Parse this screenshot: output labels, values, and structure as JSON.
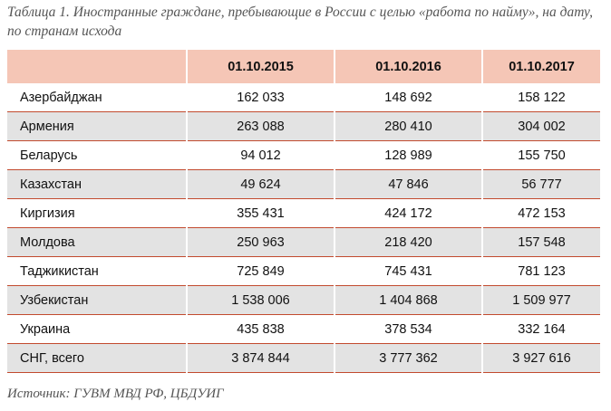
{
  "caption": "Таблица 1. Иностранные граждане, пребывающие в России с целью «работа по найму», на дату, по странам исхода",
  "table": {
    "headers": [
      "",
      "01.10.2015",
      "01.10.2016",
      "01.10.2017"
    ],
    "rows": [
      {
        "name": "Азербайджан",
        "values": [
          "162 033",
          "148 692",
          "158 122"
        ]
      },
      {
        "name": "Армения",
        "values": [
          "263 088",
          "280 410",
          "304 002"
        ]
      },
      {
        "name": "Беларусь",
        "values": [
          "94 012",
          "128 989",
          "155 750"
        ]
      },
      {
        "name": "Казахстан",
        "values": [
          "49 624",
          "47 846",
          "56 777"
        ]
      },
      {
        "name": "Киргизия",
        "values": [
          "355 431",
          "424 172",
          "472 153"
        ]
      },
      {
        "name": "Молдова",
        "values": [
          "250 963",
          "218 420",
          "157 548"
        ]
      },
      {
        "name": "Таджикистан",
        "values": [
          "725 849",
          "745 431",
          "781 123"
        ]
      },
      {
        "name": "Узбекистан",
        "values": [
          "1 538 006",
          "1 404 868",
          "1 509 977"
        ]
      },
      {
        "name": "Украина",
        "values": [
          "435 838",
          "378 534",
          "332 164"
        ]
      },
      {
        "name": "СНГ, всего",
        "values": [
          "3 874 844",
          "3 777 362",
          "3 927 616"
        ]
      }
    ]
  },
  "source": "Источник: ГУВМ МВД РФ, ЦБДУИГ",
  "colors": {
    "header_bg": "#f5c6b6",
    "row_shade": "#e3e3e3",
    "rule": "#c24a2e"
  }
}
